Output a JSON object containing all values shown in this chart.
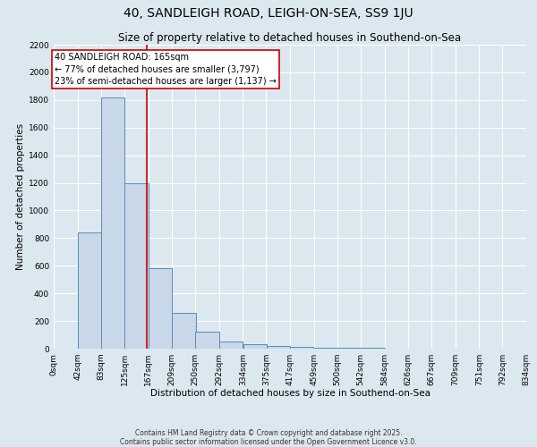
{
  "title": "40, SANDLEIGH ROAD, LEIGH-ON-SEA, SS9 1JU",
  "subtitle": "Size of property relative to detached houses in Southend-on-Sea",
  "xlabel": "Distribution of detached houses by size in Southend-on-Sea",
  "ylabel": "Number of detached properties",
  "bin_edges": [
    0,
    42,
    83,
    125,
    167,
    209,
    250,
    292,
    334,
    375,
    417,
    459,
    500,
    542,
    584,
    626,
    667,
    709,
    751,
    792,
    834
  ],
  "bin_labels": [
    "0sqm",
    "42sqm",
    "83sqm",
    "125sqm",
    "167sqm",
    "209sqm",
    "250sqm",
    "292sqm",
    "334sqm",
    "375sqm",
    "417sqm",
    "459sqm",
    "500sqm",
    "542sqm",
    "584sqm",
    "626sqm",
    "667sqm",
    "709sqm",
    "751sqm",
    "792sqm",
    "834sqm"
  ],
  "bar_heights": [
    0,
    840,
    1820,
    1200,
    580,
    260,
    120,
    50,
    30,
    18,
    12,
    8,
    5,
    4,
    3,
    2,
    2,
    1,
    1,
    0
  ],
  "bar_color": "#c8d8e8",
  "bar_edge_color": "#5b8ab5",
  "ylim": [
    0,
    2200
  ],
  "property_size": 165,
  "annotation_title": "40 SANDLEIGH ROAD: 165sqm",
  "annotation_line1": "← 77% of detached houses are smaller (3,797)",
  "annotation_line2": "23% of semi-detached houses are larger (1,137) →",
  "annotation_box_color": "#ffffff",
  "annotation_box_edge": "#cc0000",
  "vline_color": "#cc0000",
  "footer_line1": "Contains HM Land Registry data © Crown copyright and database right 2025.",
  "footer_line2": "Contains public sector information licensed under the Open Government Licence v3.0.",
  "background_color": "#dce8f0",
  "grid_color": "#ffffff",
  "title_fontsize": 10,
  "subtitle_fontsize": 8.5,
  "axis_label_fontsize": 7.5,
  "tick_fontsize": 6.5,
  "footer_fontsize": 5.5
}
